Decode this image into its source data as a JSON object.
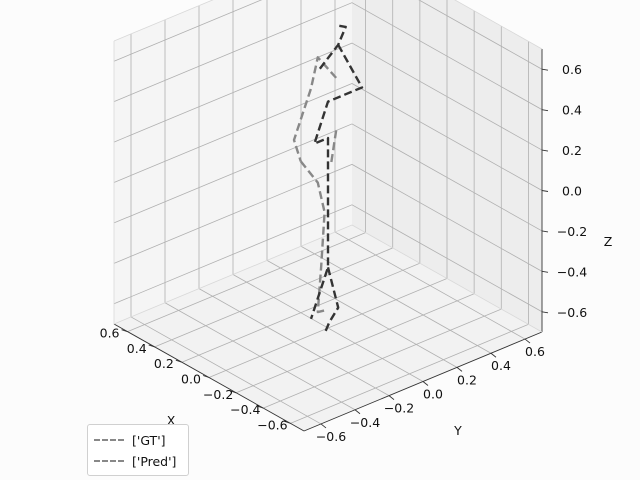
{
  "chart_data": {
    "type": "line",
    "projection": "3d",
    "xlabel": "X",
    "ylabel": "Y",
    "zlabel": "Z",
    "xlim": [
      -0.7,
      0.7
    ],
    "ylim": [
      -0.7,
      0.7
    ],
    "zlim": [
      -0.7,
      0.7
    ],
    "x_ticks": [
      "−0.6",
      "−0.4",
      "−0.2",
      "0.0",
      "0.2",
      "0.4",
      "0.6"
    ],
    "y_ticks": [
      "−0.6",
      "−0.4",
      "−0.2",
      "0.0",
      "0.2",
      "0.4",
      "0.6"
    ],
    "z_ticks": [
      "−0.6",
      "−0.4",
      "−0.2",
      "0.0",
      "0.2",
      "0.4",
      "0.6"
    ],
    "grid": true,
    "legend_position": "lower-left",
    "series": [
      {
        "name": "['GT']",
        "color": "#333333",
        "segments": [
          [
            [
              0.06,
              0.0,
              0.56
            ],
            [
              0.0,
              0.06,
              0.68
            ],
            [
              0.02,
              0.12,
              0.74
            ],
            [
              -0.06,
              0.0,
              0.82
            ]
          ],
          [
            [
              0.0,
              0.06,
              0.68
            ],
            [
              0.0,
              0.2,
              0.42
            ],
            [
              0.0,
              0.0,
              0.42
            ],
            [
              0.0,
              -0.08,
              0.24
            ],
            [
              0.0,
              0.0,
              0.24
            ],
            [
              0.0,
              0.0,
              -0.02
            ],
            [
              0.0,
              0.0,
              -0.4
            ],
            [
              0.0,
              -0.1,
              -0.62
            ]
          ],
          [
            [
              0.0,
              0.0,
              -0.4
            ],
            [
              0.0,
              0.06,
              -0.62
            ],
            [
              0.04,
              0.04,
              -0.7
            ],
            [
              0.0,
              -0.02,
              -0.72
            ]
          ]
        ]
      },
      {
        "name": "['Pred']",
        "color": "#888888",
        "segments": [
          [
            [
              -0.06,
              0.0,
              0.56
            ],
            [
              0.0,
              -0.06,
              0.66
            ],
            [
              0.0,
              -0.1,
              0.52
            ],
            [
              0.0,
              -0.2,
              0.3
            ],
            [
              0.0,
              -0.16,
              0.18
            ]
          ],
          [
            [
              -0.1,
              -0.06,
              0.18
            ],
            [
              -0.06,
              0.0,
              0.3
            ]
          ],
          [
            [
              0.0,
              -0.16,
              0.18
            ],
            [
              0.0,
              -0.06,
              0.04
            ],
            [
              0.0,
              -0.02,
              -0.12
            ],
            [
              0.0,
              -0.04,
              -0.38
            ],
            [
              0.0,
              -0.06,
              -0.6
            ],
            [
              0.02,
              0.0,
              -0.62
            ]
          ]
        ]
      }
    ]
  }
}
